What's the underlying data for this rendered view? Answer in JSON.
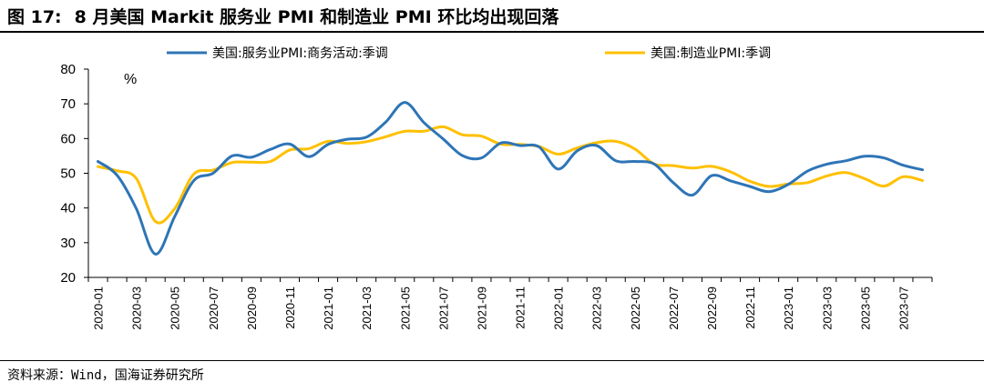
{
  "figure": {
    "number": "图 17:",
    "title": "8 月美国 Markit 服务业 PMI 和制造业 PMI 环比均出现回落",
    "source": "资料来源：Wind，国海证券研究所"
  },
  "chart_data": {
    "type": "line",
    "title": "",
    "xlabel": "",
    "ylabel": "",
    "unit_label": "%",
    "ylim": [
      20,
      80
    ],
    "yticks": [
      20,
      30,
      40,
      50,
      60,
      70,
      80
    ],
    "grid": false,
    "legend_position": "top",
    "x": [
      "2020-01",
      "2020-02",
      "2020-03",
      "2020-04",
      "2020-05",
      "2020-06",
      "2020-07",
      "2020-08",
      "2020-09",
      "2020-10",
      "2020-11",
      "2020-12",
      "2021-01",
      "2021-02",
      "2021-03",
      "2021-04",
      "2021-05",
      "2021-06",
      "2021-07",
      "2021-08",
      "2021-09",
      "2021-10",
      "2021-11",
      "2021-12",
      "2022-01",
      "2022-02",
      "2022-03",
      "2022-04",
      "2022-05",
      "2022-06",
      "2022-07",
      "2022-08",
      "2022-09",
      "2022-10",
      "2022-11",
      "2022-12",
      "2023-01",
      "2023-02",
      "2023-03",
      "2023-04",
      "2023-05",
      "2023-06",
      "2023-07",
      "2023-08"
    ],
    "x_tick_labels": [
      "2020-01",
      "2020-03",
      "2020-05",
      "2020-07",
      "2020-09",
      "2020-11",
      "2021-01",
      "2021-03",
      "2021-05",
      "2021-07",
      "2021-09",
      "2021-11",
      "2022-01",
      "2022-03",
      "2022-05",
      "2022-07",
      "2022-09",
      "2022-11",
      "2023-01",
      "2023-03",
      "2023-05",
      "2023-07"
    ],
    "series": [
      {
        "name": "美国:服务业PMI:商务活动:季调",
        "color": "#2E75B6",
        "values": [
          53.4,
          49.4,
          39.8,
          26.7,
          37.5,
          47.9,
          50.0,
          55.0,
          54.6,
          56.9,
          58.4,
          54.8,
          58.3,
          59.8,
          60.4,
          64.7,
          70.4,
          64.6,
          59.9,
          55.1,
          54.4,
          58.7,
          58.0,
          57.6,
          51.2,
          56.5,
          58.0,
          53.6,
          53.4,
          52.7,
          47.3,
          43.7,
          49.3,
          47.8,
          46.2,
          44.7,
          46.8,
          50.6,
          52.6,
          53.6,
          54.9,
          54.4,
          52.3,
          51.0
        ]
      },
      {
        "name": "美国:制造业PMI:季调",
        "color": "#FFC000",
        "values": [
          51.9,
          50.7,
          48.5,
          36.1,
          39.8,
          49.8,
          50.9,
          53.1,
          53.2,
          53.4,
          56.7,
          57.1,
          59.2,
          58.6,
          59.1,
          60.5,
          62.1,
          62.1,
          63.4,
          61.1,
          60.7,
          58.4,
          58.3,
          57.7,
          55.5,
          57.3,
          58.8,
          59.2,
          57.0,
          52.7,
          52.2,
          51.5,
          52.0,
          50.4,
          47.7,
          46.2,
          46.9,
          47.3,
          49.2,
          50.2,
          48.4,
          46.3,
          49.0,
          47.9
        ]
      }
    ]
  }
}
